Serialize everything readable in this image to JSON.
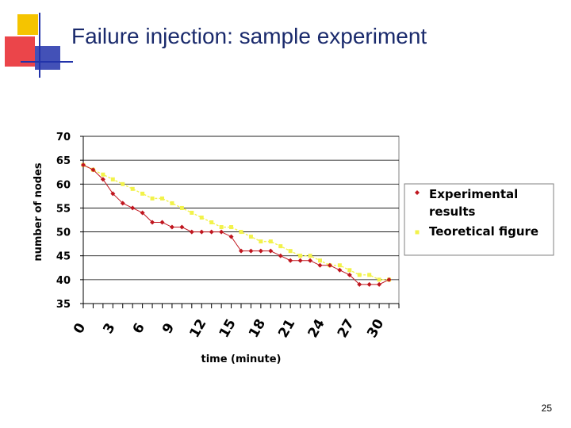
{
  "slide": {
    "title": "Failure injection: sample experiment",
    "page_number": "25"
  },
  "colors": {
    "title": "#1a2a6c",
    "deco_yellow": "#f5c400",
    "deco_red": "#e8252a",
    "deco_blue": "#2233aa",
    "experimental": "#c0161f",
    "theoretical": "#f2f24a"
  },
  "chart_data": {
    "type": "line",
    "xlabel": "time (minute)",
    "ylabel": "number of nodes",
    "xlim": [
      0,
      32
    ],
    "ylim": [
      35,
      70
    ],
    "yticks": [
      35,
      40,
      45,
      50,
      55,
      60,
      65,
      70
    ],
    "xtick_labels": [
      "0",
      "3",
      "6",
      "9",
      "12",
      "15",
      "18",
      "21",
      "24",
      "27",
      "30"
    ],
    "grid": "horizontal",
    "legend_position": "right",
    "series": [
      {
        "name": "Experimental results",
        "color": "#c0161f",
        "marker": "diamond",
        "x": [
          0,
          1,
          2,
          3,
          4,
          5,
          6,
          7,
          8,
          9,
          10,
          11,
          12,
          13,
          14,
          15,
          16,
          17,
          18,
          19,
          20,
          21,
          22,
          23,
          24,
          25,
          26,
          27,
          28,
          29,
          30,
          31
        ],
        "y": [
          64,
          63,
          61,
          58,
          56,
          55,
          54,
          52,
          52,
          51,
          51,
          50,
          50,
          50,
          50,
          49,
          46,
          46,
          46,
          46,
          45,
          44,
          44,
          44,
          43,
          43,
          42,
          41,
          39,
          39,
          39,
          40
        ]
      },
      {
        "name": "Teoretical figure",
        "color": "#f2f24a",
        "marker": "square",
        "x": [
          0,
          1,
          2,
          3,
          4,
          5,
          6,
          7,
          8,
          9,
          10,
          11,
          12,
          13,
          14,
          15,
          16,
          17,
          18,
          19,
          20,
          21,
          22,
          23,
          24,
          25,
          26,
          27,
          28,
          29,
          30,
          31
        ],
        "y": [
          64,
          63,
          62,
          61,
          60,
          59,
          58,
          57,
          57,
          56,
          55,
          54,
          53,
          52,
          51,
          51,
          50,
          49,
          48,
          48,
          47,
          46,
          45,
          45,
          44,
          43,
          43,
          42,
          41,
          41,
          40,
          40
        ]
      }
    ]
  }
}
